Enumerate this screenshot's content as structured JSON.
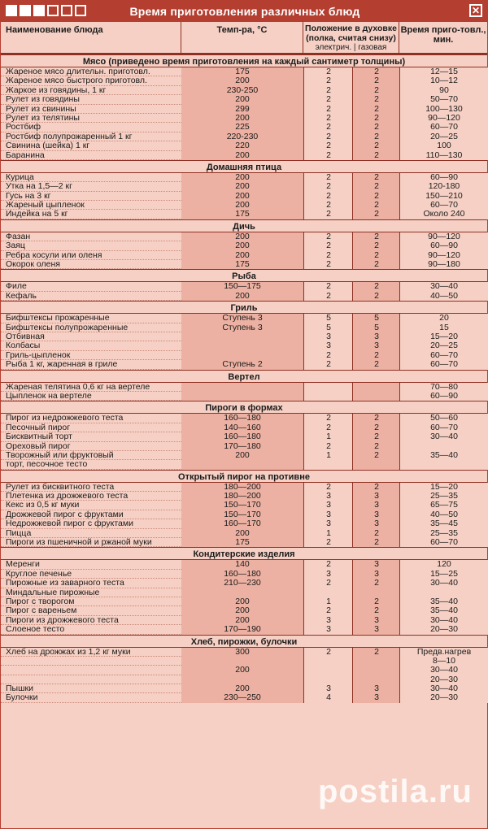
{
  "window": {
    "title": "Время приготовления различных блюд",
    "close_label": "✕"
  },
  "header": {
    "name": "Наименование блюда",
    "temp": "Темп-ра, °C",
    "position": "Положение в духовке (полка, считая снизу)",
    "position_sub": "электрич. | газовая",
    "time": "Время приго-товл., мин."
  },
  "sections": [
    {
      "title": "Мясо (приведено время приготовления на каждый сантиметр толщины)",
      "rows": [
        {
          "name": "Жареное мясо длительн. приготовл.",
          "temp": "175",
          "el": "2",
          "gas": "2",
          "time": "12—15"
        },
        {
          "name": "Жареное мясо быстрого приготовл.",
          "temp": "200",
          "el": "2",
          "gas": "2",
          "time": "10—12"
        },
        {
          "name": "Жаркое из говядины, 1 кг",
          "temp": "230-250",
          "el": "2",
          "gas": "2",
          "time": "90"
        },
        {
          "name": "Рулет из говядины",
          "temp": "200",
          "el": "2",
          "gas": "2",
          "time": "50—70"
        },
        {
          "name": "Рулет из свинины",
          "temp": "299",
          "el": "2",
          "gas": "2",
          "time": "100—130"
        },
        {
          "name": "Рулет из телятины",
          "temp": "200",
          "el": "2",
          "gas": "2",
          "time": "90—120"
        },
        {
          "name": "Ростбиф",
          "temp": "225",
          "el": "2",
          "gas": "2",
          "time": "60—70"
        },
        {
          "name": "Ростбиф полупрожаренный 1 кг",
          "temp": "220-230",
          "el": "2",
          "gas": "2",
          "time": "20—25"
        },
        {
          "name": "Свинина (шейка) 1 кг",
          "temp": "220",
          "el": "2",
          "gas": "2",
          "time": "100"
        },
        {
          "name": "Баранина",
          "temp": "200",
          "el": "2",
          "gas": "2",
          "time": "110—130"
        }
      ]
    },
    {
      "title": "Домашняя птица",
      "rows": [
        {
          "name": "Курица",
          "temp": "200",
          "el": "2",
          "gas": "2",
          "time": "60—90"
        },
        {
          "name": "Утка на 1,5—2 кг",
          "temp": "200",
          "el": "2",
          "gas": "2",
          "time": "120-180"
        },
        {
          "name": "Гусь на 3 кг",
          "temp": "200",
          "el": "2",
          "gas": "2",
          "time": "150—210"
        },
        {
          "name": "Жареный цыпленок",
          "temp": "200",
          "el": "2",
          "gas": "2",
          "time": "60—70"
        },
        {
          "name": "Индейка на 5 кг",
          "temp": "175",
          "el": "2",
          "gas": "2",
          "time": "Около 240"
        }
      ]
    },
    {
      "title": "Дичь",
      "rows": [
        {
          "name": "Фазан",
          "temp": "200",
          "el": "2",
          "gas": "2",
          "time": "90—120"
        },
        {
          "name": "Заяц",
          "temp": "200",
          "el": "2",
          "gas": "2",
          "time": "60—90"
        },
        {
          "name": "Ребра косули или оленя",
          "temp": "200",
          "el": "2",
          "gas": "2",
          "time": "90—120"
        },
        {
          "name": "Окорок оленя",
          "temp": "175",
          "el": "2",
          "gas": "2",
          "time": "90—180"
        }
      ]
    },
    {
      "title": "Рыба",
      "rows": [
        {
          "name": "Филе",
          "temp": "150—175",
          "el": "2",
          "gas": "2",
          "time": "30—40"
        },
        {
          "name": "Кефаль",
          "temp": "200",
          "el": "2",
          "gas": "2",
          "time": "40—50"
        }
      ]
    },
    {
      "title": "Гриль",
      "rows": [
        {
          "name": "Бифштексы прожаренные",
          "temp": "Ступень 3",
          "el": "5",
          "gas": "5",
          "time": "20"
        },
        {
          "name": "Бифштексы полупрожаренные",
          "temp": "Ступень 3",
          "el": "5",
          "gas": "5",
          "time": "15"
        },
        {
          "name": "Отбивная",
          "temp": "",
          "el": "3",
          "gas": "3",
          "time": "15—20"
        },
        {
          "name": "Колбасы",
          "temp": "",
          "el": "3",
          "gas": "3",
          "time": "20—25"
        },
        {
          "name": "Гриль-цыпленок",
          "temp": "",
          "el": "2",
          "gas": "2",
          "time": "60—70"
        },
        {
          "name": "Рыба 1 кг, жаренная в гриле",
          "temp": "Ступень 2",
          "el": "2",
          "gas": "2",
          "time": "60—70"
        }
      ]
    },
    {
      "title": "Вертел",
      "rows": [
        {
          "name": "Жареная телятина 0,6 кг на вертеле",
          "temp": "",
          "el": "",
          "gas": "",
          "time": "70—80"
        },
        {
          "name": "Цыпленок на вертеле",
          "temp": "",
          "el": "",
          "gas": "",
          "time": "60—90"
        }
      ]
    },
    {
      "title": "Пироги в формах",
      "rows": [
        {
          "name": "Пирог из недрожжевого теста",
          "temp": "160—180",
          "el": "2",
          "gas": "2",
          "time": "50—60"
        },
        {
          "name": "Песочный пирог",
          "temp": "140—160",
          "el": "2",
          "gas": "2",
          "time": "60—70"
        },
        {
          "name": "Бисквитный торт",
          "temp": "160—180",
          "el": "1",
          "gas": "2",
          "time": "30—40"
        },
        {
          "name": "Ореховый пирог",
          "temp": "170—180",
          "el": "2",
          "gas": "2",
          "time": ""
        },
        {
          "name": "Творожный или фруктовый",
          "temp": "200",
          "el": "1",
          "gas": "2",
          "time": "35—40"
        },
        {
          "name": "торт, песочное тесто",
          "temp": "",
          "el": "",
          "gas": "",
          "time": ""
        }
      ]
    },
    {
      "title": "Открытый пирог на противне",
      "rows": [
        {
          "name": "Рулет из бисквитного теста",
          "temp": "180—200",
          "el": "2",
          "gas": "2",
          "time": "15—20"
        },
        {
          "name": "Плетенка из дрожжевого теста",
          "temp": "180—200",
          "el": "3",
          "gas": "3",
          "time": "25—35"
        },
        {
          "name": "Кекс из 0,5 кг муки",
          "temp": "150—170",
          "el": "3",
          "gas": "3",
          "time": "65—75"
        },
        {
          "name": "Дрожжевой пирог с фруктами",
          "temp": "150—170",
          "el": "3",
          "gas": "3",
          "time": "40—50"
        },
        {
          "name": "Недрожжевой пирог с фруктами",
          "temp": "160—170",
          "el": "3",
          "gas": "3",
          "time": "35—45"
        },
        {
          "name": "Пицца",
          "temp": "200",
          "el": "1",
          "gas": "2",
          "time": "25—35"
        },
        {
          "name": "Пироги из пшеничной и ржаной муки",
          "temp": "175",
          "el": "2",
          "gas": "2",
          "time": "60—70"
        }
      ]
    },
    {
      "title": "Кондитерские изделия",
      "rows": [
        {
          "name": "Меренги",
          "temp": "140",
          "el": "2",
          "gas": "3",
          "time": "120"
        },
        {
          "name": "Круглое печенье",
          "temp": "160—180",
          "el": "3",
          "gas": "3",
          "time": "15—25"
        },
        {
          "name": "Пирожные из заварного теста",
          "temp": "210—230",
          "el": "2",
          "gas": "2",
          "time": "30—40"
        },
        {
          "name": "Миндальные пирожные",
          "temp": "",
          "el": "",
          "gas": "",
          "time": ""
        },
        {
          "name": "Пирог с творогом",
          "temp": "200",
          "el": "1",
          "gas": "2",
          "time": "35—40"
        },
        {
          "name": "Пирог с вареньем",
          "temp": "200",
          "el": "2",
          "gas": "2",
          "time": "35—40"
        },
        {
          "name": "Пироги из дрожжевого теста",
          "temp": "200",
          "el": "3",
          "gas": "3",
          "time": "30—40"
        },
        {
          "name": "Слоеное тесто",
          "temp": "170—190",
          "el": "3",
          "gas": "3",
          "time": "20—30"
        }
      ]
    },
    {
      "title": "Хлеб, пирожки, булочки",
      "rows": [
        {
          "name": "Хлеб на дрожжах из 1,2 кг муки",
          "temp": "300",
          "el": "2",
          "gas": "2",
          "time": "Предв.нагрев"
        },
        {
          "name": "",
          "temp": "",
          "el": "",
          "gas": "",
          "time": "8—10"
        },
        {
          "name": "",
          "temp": "200",
          "el": "",
          "gas": "",
          "time": "30—40"
        },
        {
          "name": "",
          "temp": "",
          "el": "",
          "gas": "",
          "time": "20—30"
        },
        {
          "name": "Пышки",
          "temp": "200",
          "el": "3",
          "gas": "3",
          "time": "30—40"
        },
        {
          "name": "Булочки",
          "temp": "230—250",
          "el": "4",
          "gas": "3",
          "time": "20—30"
        }
      ]
    }
  ],
  "watermark": "postila.ru"
}
